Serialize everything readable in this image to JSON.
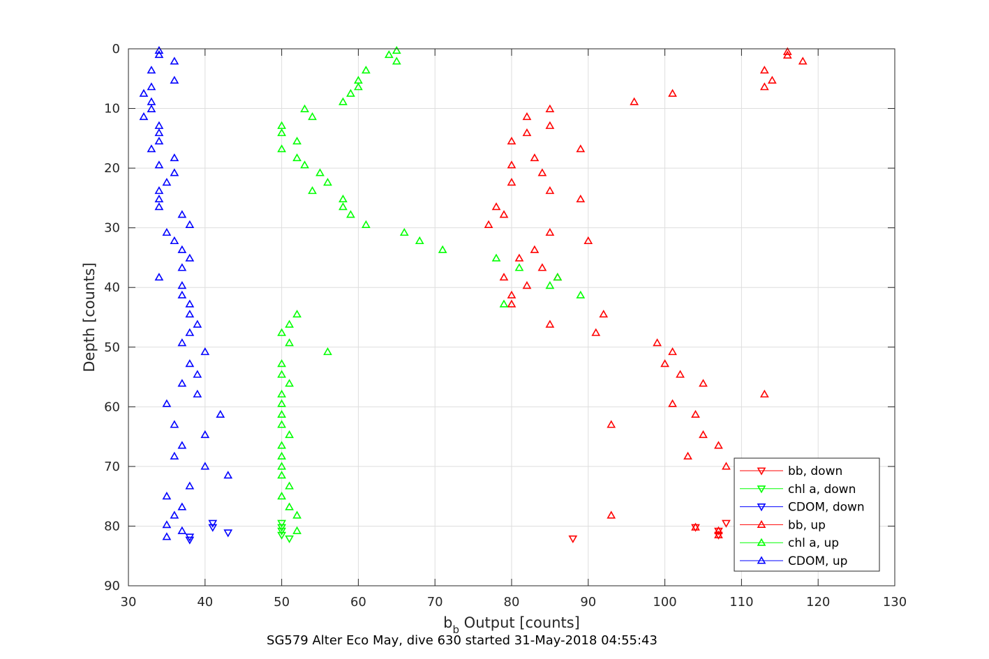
{
  "chart_data": {
    "type": "scatter",
    "title": "SG579 Alter Eco May, dive 630 started 31-May-2018 04:55:43",
    "xlabel_main": "b",
    "xlabel_sub": "b",
    "xlabel_rest": " Output [counts]",
    "ylabel": "Depth [counts]",
    "xlim": [
      30,
      130
    ],
    "ylim": [
      0,
      90
    ],
    "y_reversed": true,
    "xticks": [
      30,
      40,
      50,
      60,
      70,
      80,
      90,
      100,
      110,
      120,
      130
    ],
    "yticks": [
      0,
      10,
      20,
      30,
      40,
      50,
      60,
      70,
      80,
      90
    ],
    "grid": true,
    "legend_position": "bottom-right",
    "series": [
      {
        "name": "bb, down",
        "color": "#ff0000",
        "marker": "triangle-down",
        "x": [
          108,
          104,
          107,
          107,
          88
        ],
        "y": [
          79.5,
          80.2,
          80.8,
          81.5,
          82.1
        ]
      },
      {
        "name": "chl a, down",
        "color": "#00ff00",
        "marker": "triangle-down",
        "x": [
          50,
          50,
          50,
          50,
          51
        ],
        "y": [
          79.5,
          80.2,
          80.8,
          81.5,
          82.1
        ]
      },
      {
        "name": "CDOM, down",
        "color": "#0000ff",
        "marker": "triangle-down",
        "x": [
          41,
          41,
          43,
          38,
          38
        ],
        "y": [
          79.5,
          80.2,
          81.1,
          81.8,
          82.3
        ]
      },
      {
        "name": "bb, up",
        "color": "#ff0000",
        "marker": "triangle-up",
        "x": [
          116,
          116,
          118,
          113,
          114,
          113,
          101,
          96,
          85,
          82,
          85,
          82,
          80,
          89,
          83,
          80,
          84,
          80,
          85,
          89,
          78,
          79,
          77,
          85,
          90,
          83,
          81,
          84,
          86,
          79,
          82,
          80,
          80,
          92,
          85,
          91,
          99,
          101,
          100,
          102,
          105,
          113,
          101,
          104,
          93,
          105,
          107,
          103,
          108,
          93,
          104,
          107,
          107
        ],
        "y": [
          0.5,
          1.1,
          2.1,
          3.6,
          5.3,
          6.4,
          7.5,
          8.9,
          10.1,
          11.4,
          12.9,
          14.1,
          15.5,
          16.8,
          18.3,
          19.5,
          20.8,
          22.4,
          23.8,
          25.2,
          26.5,
          27.8,
          29.5,
          30.8,
          32.2,
          33.7,
          35.1,
          36.7,
          38.3,
          38.3,
          39.7,
          41.3,
          42.8,
          44.5,
          46.2,
          47.6,
          49.3,
          50.8,
          52.8,
          54.6,
          56.1,
          57.9,
          59.5,
          61.3,
          63.0,
          64.7,
          66.5,
          68.3,
          70.0,
          78.2,
          80.2,
          80.8,
          81.5
        ]
      },
      {
        "name": "chl a, up",
        "color": "#00ff00",
        "marker": "triangle-up",
        "x": [
          65,
          64,
          65,
          61,
          60,
          60,
          59,
          58,
          53,
          54,
          50,
          50,
          52,
          50,
          52,
          53,
          55,
          56,
          54,
          58,
          58,
          59,
          61,
          66,
          68,
          71,
          78,
          81,
          86,
          85,
          89,
          79,
          52,
          51,
          50,
          51,
          56,
          50,
          50,
          51,
          50,
          50,
          50,
          50,
          51,
          50,
          50,
          50,
          50,
          51,
          50,
          51,
          52,
          52
        ],
        "y": [
          0.3,
          1.0,
          2.1,
          3.6,
          5.3,
          6.4,
          7.5,
          8.9,
          10.1,
          11.4,
          12.9,
          14.1,
          15.5,
          16.8,
          18.3,
          19.5,
          20.8,
          22.4,
          23.8,
          25.2,
          26.5,
          27.8,
          29.5,
          30.8,
          32.2,
          33.7,
          35.1,
          36.7,
          38.3,
          39.7,
          41.3,
          42.8,
          44.5,
          46.2,
          47.6,
          49.3,
          50.8,
          52.8,
          54.6,
          56.1,
          57.9,
          59.5,
          61.3,
          63.0,
          64.7,
          66.5,
          68.3,
          70.0,
          71.5,
          73.3,
          75.0,
          76.8,
          78.2,
          80.8
        ]
      },
      {
        "name": "CDOM, up",
        "color": "#0000ff",
        "marker": "triangle-up",
        "x": [
          34,
          34,
          36,
          33,
          36,
          33,
          32,
          33,
          33,
          32,
          34,
          34,
          34,
          33,
          36,
          34,
          36,
          35,
          34,
          34,
          34,
          37,
          38,
          35,
          36,
          37,
          38,
          37,
          34,
          37,
          37,
          38,
          38,
          39,
          38,
          37,
          40,
          38,
          39,
          37,
          39,
          35,
          42,
          36,
          40,
          37,
          36,
          40,
          43,
          38,
          35,
          37,
          36,
          35,
          37,
          35
        ],
        "y": [
          0.3,
          1.0,
          2.1,
          3.6,
          5.3,
          6.4,
          7.5,
          8.9,
          10.1,
          11.4,
          12.9,
          14.1,
          15.5,
          16.8,
          18.3,
          19.5,
          20.8,
          22.4,
          23.8,
          25.2,
          26.5,
          27.8,
          29.5,
          30.8,
          32.2,
          33.7,
          35.1,
          36.7,
          38.3,
          39.7,
          41.3,
          42.8,
          44.5,
          46.2,
          47.6,
          49.3,
          50.8,
          52.8,
          54.6,
          56.1,
          57.9,
          59.5,
          61.3,
          63.0,
          64.7,
          66.5,
          68.3,
          70.0,
          71.5,
          73.3,
          75.0,
          76.8,
          78.2,
          79.8,
          80.8,
          81.8
        ]
      }
    ]
  }
}
